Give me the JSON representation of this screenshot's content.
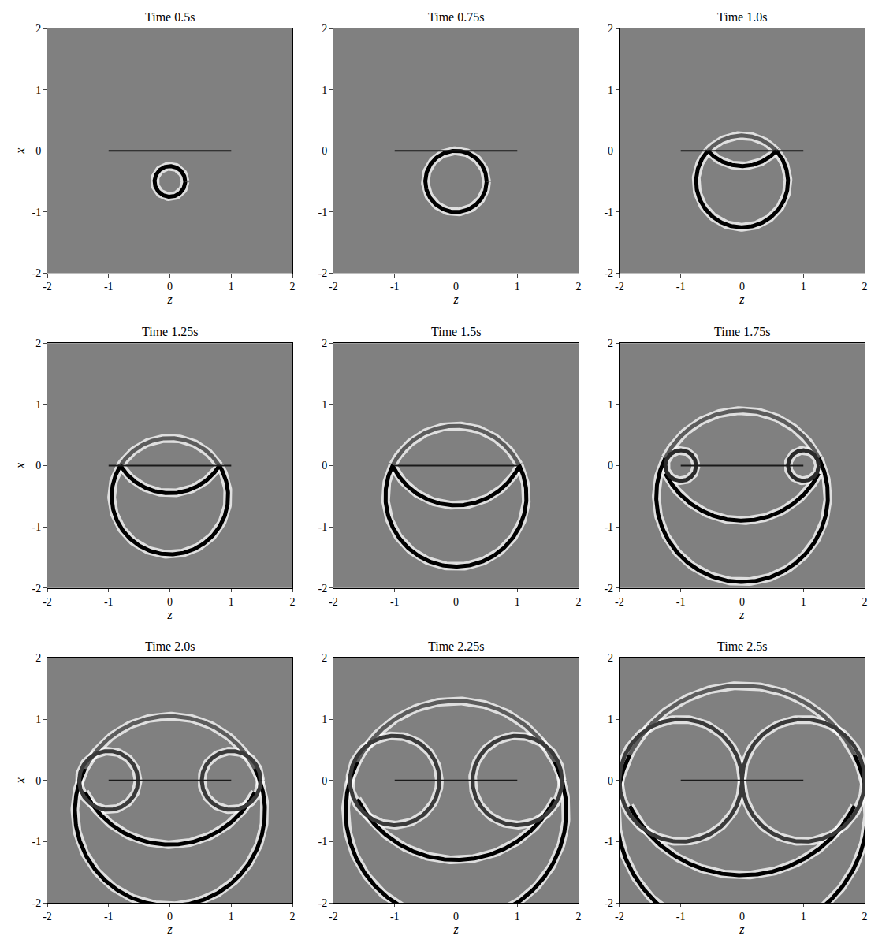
{
  "chart_data": [
    {
      "type": "wavefield",
      "title": "Time 0.5s",
      "xlabel": "z",
      "ylabel": "x",
      "xlim": [
        -2,
        2
      ],
      "ylim": [
        -2,
        2
      ],
      "xticks": [
        -2,
        -1,
        0,
        1,
        2
      ],
      "yticks": [
        -2,
        -1,
        0,
        1,
        2
      ],
      "barrier": {
        "x": [
          -1,
          1
        ],
        "y": [
          0,
          0
        ],
        "color": "#1a1a1a"
      },
      "fronts": [
        {
          "center": [
            0,
            -0.5
          ],
          "radius": 0.25,
          "theta": [
            0,
            360
          ],
          "color": "#000000"
        }
      ]
    },
    {
      "type": "wavefield",
      "title": "Time 0.75s",
      "xlabel": "z",
      "xlim": [
        -2,
        2
      ],
      "ylim": [
        -2,
        2
      ],
      "xticks": [
        -2,
        -1,
        0,
        1,
        2
      ],
      "yticks": [
        -2,
        -1,
        0,
        1,
        2
      ],
      "barrier": {
        "x": [
          -1,
          1
        ],
        "y": [
          0,
          0
        ],
        "color": "#1a1a1a"
      },
      "fronts": [
        {
          "center": [
            0,
            -0.5
          ],
          "radius": 0.5,
          "theta": [
            0,
            360
          ],
          "color": "#000000"
        }
      ]
    },
    {
      "type": "wavefield",
      "title": "Time 1.0s",
      "xlabel": "z",
      "xlim": [
        -2,
        2
      ],
      "ylim": [
        -2,
        2
      ],
      "xticks": [
        -2,
        -1,
        0,
        1,
        2
      ],
      "yticks": [
        -2,
        -1,
        0,
        1,
        2
      ],
      "barrier": {
        "x": [
          -1,
          1
        ],
        "y": [
          0,
          0
        ],
        "color": "#1a1a1a"
      },
      "fronts": [
        {
          "center": [
            0,
            -0.5
          ],
          "radius": 0.75,
          "theta": [
            41.8,
            138.2
          ],
          "color": "#5c5c5c"
        },
        {
          "center": [
            0,
            -0.5
          ],
          "radius": 0.75,
          "theta": [
            138.2,
            401.8
          ],
          "color": "#000000"
        },
        {
          "center": [
            0,
            0.5
          ],
          "radius": 0.75,
          "theta": [
            221.8,
            318.2
          ],
          "color": "#000000"
        }
      ]
    },
    {
      "type": "wavefield",
      "title": "Time 1.25s",
      "xlabel": "z",
      "ylabel": "x",
      "xlim": [
        -2,
        2
      ],
      "ylim": [
        -2,
        2
      ],
      "xticks": [
        -2,
        -1,
        0,
        1,
        2
      ],
      "yticks": [
        -2,
        -1,
        0,
        1,
        2
      ],
      "barrier": {
        "x": [
          -1,
          1
        ],
        "y": [
          0,
          0
        ],
        "color": "#1a1a1a"
      },
      "fronts": [
        {
          "center": [
            0,
            -0.5
          ],
          "radius": 0.95,
          "theta": [
            31.8,
            148.2
          ],
          "color": "#5c5c5c"
        },
        {
          "center": [
            0,
            -0.5
          ],
          "radius": 0.95,
          "theta": [
            148.2,
            391.8
          ],
          "color": "#000000"
        },
        {
          "center": [
            0,
            0.5
          ],
          "radius": 0.95,
          "theta": [
            211.8,
            328.2
          ],
          "color": "#000000"
        }
      ]
    },
    {
      "type": "wavefield",
      "title": "Time 1.5s",
      "xlim": [
        -2,
        2
      ],
      "ylim": [
        -2,
        2
      ],
      "xticks": [
        -2,
        -1,
        0,
        1,
        2
      ],
      "yticks": [
        -2,
        -1,
        0,
        1,
        2
      ],
      "barrier": {
        "x": [
          -1,
          1
        ],
        "y": [
          0,
          0
        ],
        "color": "#1a1a1a"
      },
      "fronts": [
        {
          "center": [
            0,
            -0.5
          ],
          "radius": 1.15,
          "theta": [
            26.6,
            153.4
          ],
          "color": "#5c5c5c"
        },
        {
          "center": [
            0,
            -0.5
          ],
          "radius": 1.15,
          "theta": [
            153.4,
            386.6
          ],
          "color": "#000000"
        },
        {
          "center": [
            0,
            0.5
          ],
          "radius": 1.15,
          "theta": [
            206.6,
            333.4
          ],
          "color": "#000000"
        }
      ]
    },
    {
      "type": "wavefield",
      "title": "Time 1.75s",
      "xlabel": "z",
      "xlim": [
        -2,
        2
      ],
      "ylim": [
        -2,
        2
      ],
      "xticks": [
        -2,
        -1,
        0,
        1,
        2
      ],
      "yticks": [
        -2,
        -1,
        0,
        1,
        2
      ],
      "barrier": {
        "x": [
          -1,
          1
        ],
        "y": [
          0,
          0
        ],
        "color": "#1a1a1a"
      },
      "fronts": [
        {
          "center": [
            0,
            -0.5
          ],
          "radius": 1.4,
          "theta": [
            26.6,
            153.4
          ],
          "color": "#5c5c5c"
        },
        {
          "center": [
            0,
            -0.5
          ],
          "radius": 1.4,
          "theta": [
            153.4,
            386.6
          ],
          "color": "#000000"
        },
        {
          "center": [
            0,
            0.5
          ],
          "radius": 1.4,
          "theta": [
            206.6,
            333.4
          ],
          "color": "#000000"
        },
        {
          "center": [
            -1,
            0
          ],
          "radius": 0.25,
          "theta": [
            0,
            360
          ],
          "color": "#2a2a2a"
        },
        {
          "center": [
            1,
            0
          ],
          "radius": 0.25,
          "theta": [
            0,
            360
          ],
          "color": "#2a2a2a"
        }
      ]
    },
    {
      "type": "wavefield",
      "title": "Time 2.0s",
      "xlabel": "z",
      "ylabel": "x",
      "xlim": [
        -2,
        2
      ],
      "ylim": [
        -2,
        2
      ],
      "xticks": [
        -2,
        -1,
        0,
        1,
        2
      ],
      "yticks": [
        -2,
        -1,
        0,
        1,
        2
      ],
      "barrier": {
        "x": [
          -1,
          1
        ],
        "y": [
          0,
          0
        ],
        "color": "#1a1a1a"
      },
      "fronts": [
        {
          "center": [
            0,
            -0.5
          ],
          "radius": 1.55,
          "theta": [
            26.6,
            153.4
          ],
          "color": "#5c5c5c"
        },
        {
          "center": [
            0,
            -0.5
          ],
          "radius": 1.55,
          "theta": [
            153.4,
            386.6
          ],
          "color": "#000000"
        },
        {
          "center": [
            0,
            0.5
          ],
          "radius": 1.55,
          "theta": [
            206.6,
            333.4
          ],
          "color": "#000000"
        },
        {
          "center": [
            -1,
            0
          ],
          "radius": 0.48,
          "theta": [
            0,
            360
          ],
          "color": "#3a3a3a"
        },
        {
          "center": [
            1,
            0
          ],
          "radius": 0.48,
          "theta": [
            0,
            360
          ],
          "color": "#3a3a3a"
        }
      ]
    },
    {
      "type": "wavefield",
      "title": "Time 2.25s",
      "xlabel": "z",
      "xlim": [
        -2,
        2
      ],
      "ylim": [
        -2,
        2
      ],
      "xticks": [
        -2,
        -1,
        0,
        1,
        2
      ],
      "yticks": [
        -2,
        -1,
        0,
        1,
        2
      ],
      "barrier": {
        "x": [
          -1,
          1
        ],
        "y": [
          0,
          0
        ],
        "color": "#1a1a1a"
      },
      "fronts": [
        {
          "center": [
            0,
            -0.5
          ],
          "radius": 1.8,
          "theta": [
            26.6,
            153.4
          ],
          "color": "#5c5c5c"
        },
        {
          "center": [
            0,
            -0.5
          ],
          "radius": 1.8,
          "theta": [
            153.4,
            386.6
          ],
          "color": "#000000"
        },
        {
          "center": [
            0,
            0.5
          ],
          "radius": 1.8,
          "theta": [
            206.6,
            333.4
          ],
          "color": "#000000"
        },
        {
          "center": [
            -1,
            0
          ],
          "radius": 0.73,
          "theta": [
            0,
            360
          ],
          "color": "#3a3a3a"
        },
        {
          "center": [
            1,
            0
          ],
          "radius": 0.73,
          "theta": [
            0,
            360
          ],
          "color": "#3a3a3a"
        }
      ]
    },
    {
      "type": "wavefield",
      "title": "Time 2.5s",
      "xlabel": "z",
      "xlim": [
        -2,
        2
      ],
      "ylim": [
        -2,
        2
      ],
      "xticks": [
        -2,
        -1,
        0,
        1,
        2
      ],
      "yticks": [
        -2,
        -1,
        0,
        1,
        2
      ],
      "barrier": {
        "x": [
          -1,
          1
        ],
        "y": [
          0,
          0
        ],
        "color": "#1a1a1a"
      },
      "fronts": [
        {
          "center": [
            0,
            -0.5
          ],
          "radius": 2.05,
          "theta": [
            26.6,
            153.4
          ],
          "color": "#5c5c5c"
        },
        {
          "center": [
            0,
            -0.5
          ],
          "radius": 2.05,
          "theta": [
            153.4,
            386.6
          ],
          "color": "#000000"
        },
        {
          "center": [
            0,
            0.5
          ],
          "radius": 2.05,
          "theta": [
            206.6,
            333.4
          ],
          "color": "#000000"
        },
        {
          "center": [
            -1,
            0
          ],
          "radius": 1.0,
          "theta": [
            0,
            360
          ],
          "color": "#3a3a3a"
        },
        {
          "center": [
            1,
            0
          ],
          "radius": 1.0,
          "theta": [
            0,
            360
          ],
          "color": "#3a3a3a"
        }
      ]
    }
  ]
}
